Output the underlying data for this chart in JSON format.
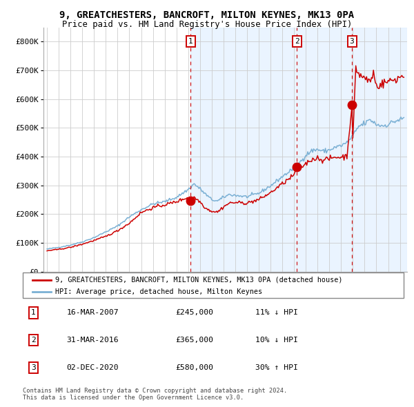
{
  "title1": "9, GREATCHESTERS, BANCROFT, MILTON KEYNES, MK13 0PA",
  "title2": "Price paid vs. HM Land Registry's House Price Index (HPI)",
  "legend_line1": "9, GREATCHESTERS, BANCROFT, MILTON KEYNES, MK13 0PA (detached house)",
  "legend_line2": "HPI: Average price, detached house, Milton Keynes",
  "transactions": [
    {
      "num": 1,
      "x": 2007.205,
      "price": 245000
    },
    {
      "num": 2,
      "x": 2016.247,
      "price": 365000
    },
    {
      "num": 3,
      "x": 2020.921,
      "price": 580000
    }
  ],
  "table_rows": [
    {
      "num": 1,
      "date": "16-MAR-2007",
      "price": "£245,000",
      "rel": "11% ↓ HPI"
    },
    {
      "num": 2,
      "date": "31-MAR-2016",
      "price": "£365,000",
      "rel": "10% ↓ HPI"
    },
    {
      "num": 3,
      "date": "02-DEC-2020",
      "price": "£580,000",
      "rel": "30% ↑ HPI"
    }
  ],
  "hpi_color": "#7ab0d4",
  "sale_color": "#cc0000",
  "marker_color": "#cc0000",
  "vline_color": "#cc0000",
  "bg_shade_color": "#ddeeff",
  "footer": "Contains HM Land Registry data © Crown copyright and database right 2024.\nThis data is licensed under the Open Government Licence v3.0.",
  "ylim": [
    0,
    850000
  ],
  "ytick_vals": [
    0,
    100000,
    200000,
    300000,
    400000,
    500000,
    600000,
    700000,
    800000
  ],
  "ytick_labels": [
    "£0",
    "£100K",
    "£200K",
    "£300K",
    "£400K",
    "£500K",
    "£600K",
    "£700K",
    "£800K"
  ],
  "xlim_start": 1994.7,
  "xlim_end": 2025.6,
  "hpi_milestones": {
    "1995.0": 78000,
    "1996.0": 84000,
    "1997.0": 92000,
    "1998.0": 103000,
    "1999.0": 118000,
    "2000.0": 138000,
    "2001.0": 158000,
    "2002.0": 190000,
    "2003.0": 215000,
    "2004.0": 235000,
    "2005.0": 243000,
    "2006.0": 258000,
    "2007.0": 285000,
    "2007.5": 305000,
    "2008.0": 288000,
    "2008.5": 268000,
    "2009.0": 250000,
    "2009.5": 245000,
    "2010.0": 258000,
    "2010.5": 268000,
    "2011.0": 265000,
    "2012.0": 260000,
    "2013.0": 272000,
    "2014.0": 298000,
    "2015.0": 330000,
    "2016.0": 360000,
    "2016.5": 380000,
    "2017.0": 405000,
    "2017.5": 420000,
    "2018.0": 425000,
    "2018.5": 418000,
    "2019.0": 423000,
    "2019.5": 432000,
    "2020.0": 438000,
    "2020.5": 448000,
    "2021.0": 472000,
    "2021.5": 505000,
    "2022.0": 515000,
    "2022.5": 528000,
    "2023.0": 512000,
    "2023.5": 507000,
    "2024.0": 512000,
    "2024.5": 522000,
    "2025.3": 532000
  },
  "sale_milestones": {
    "1995.0": 72000,
    "1996.0": 77000,
    "1997.0": 84000,
    "1998.0": 95000,
    "1999.0": 108000,
    "2000.0": 122000,
    "2001.0": 142000,
    "2002.0": 168000,
    "2003.0": 205000,
    "2004.0": 222000,
    "2005.0": 232000,
    "2006.0": 243000,
    "2007.0": 258000,
    "2007.205": 245000,
    "2007.5": 258000,
    "2008.0": 243000,
    "2008.5": 220000,
    "2009.0": 210000,
    "2009.5": 207000,
    "2010.0": 225000,
    "2010.5": 238000,
    "2011.0": 240000,
    "2012.0": 238000,
    "2013.0": 250000,
    "2014.0": 274000,
    "2015.0": 305000,
    "2016.0": 335000,
    "2016.247": 365000,
    "2016.5": 360000,
    "2017.0": 375000,
    "2017.5": 390000,
    "2018.0": 395000,
    "2018.5": 388000,
    "2019.0": 392000,
    "2019.5": 398000,
    "2020.0": 398000,
    "2020.5": 402000,
    "2020.921": 580000,
    "2021.0": 455000,
    "2021.25": 710000,
    "2021.5": 688000,
    "2022.0": 672000,
    "2022.5": 662000,
    "2022.75": 693000,
    "2023.0": 645000,
    "2023.5": 653000,
    "2024.0": 662000,
    "2024.5": 667000,
    "2025.3": 682000
  }
}
